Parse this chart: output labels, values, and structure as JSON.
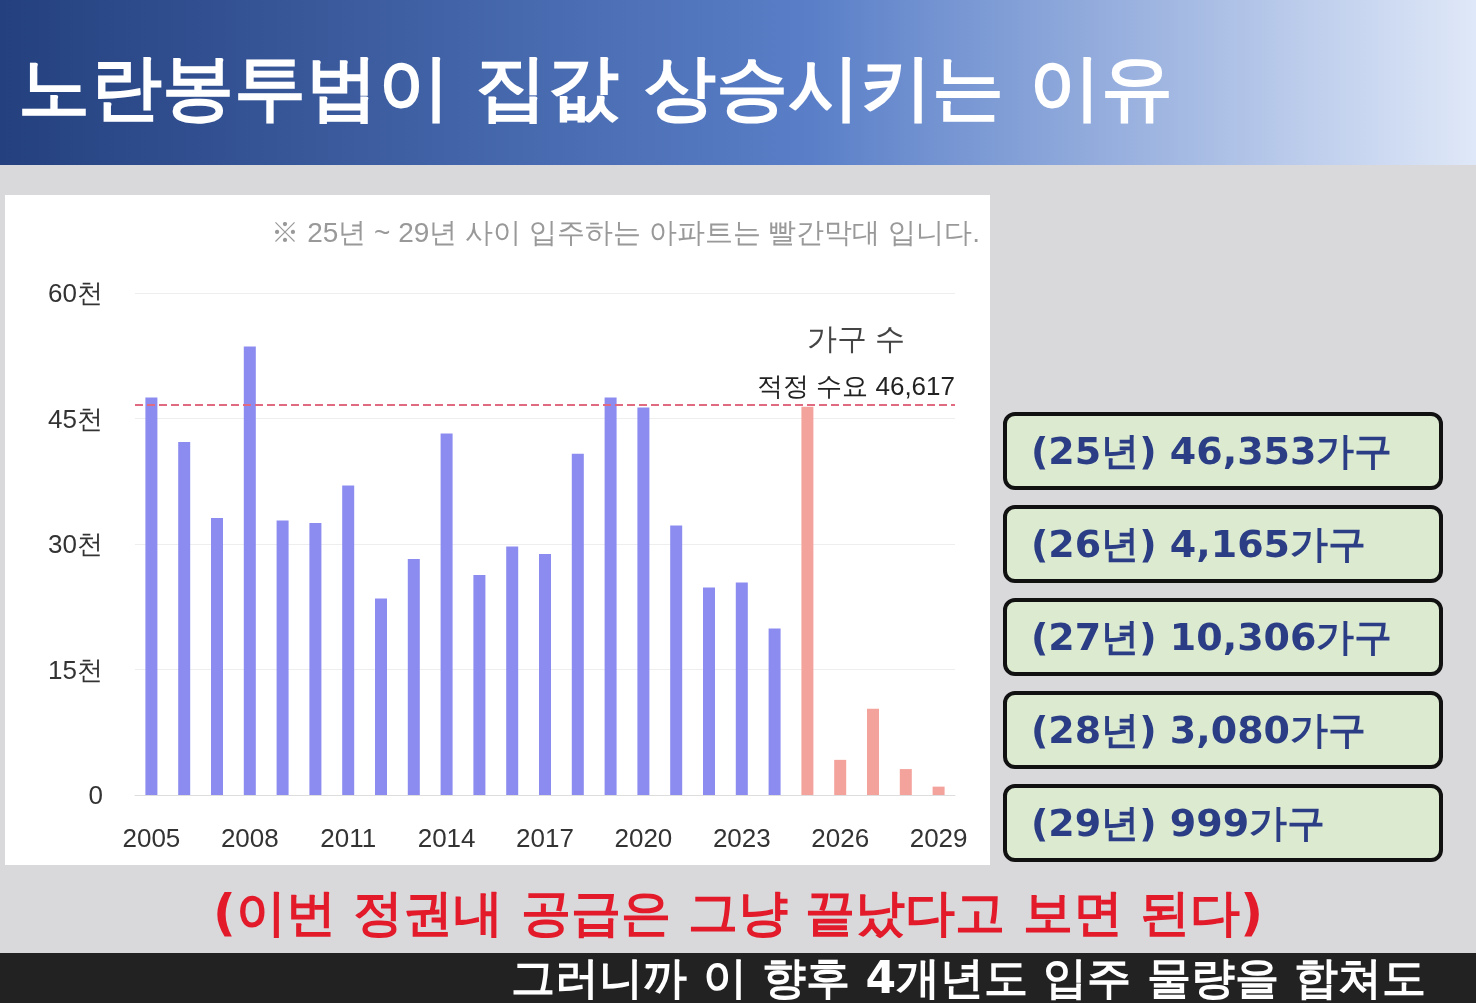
{
  "chart_data": {
    "type": "bar",
    "title": "노란봉투법이 집값 상승시키는 이유",
    "subtitle": "※ 25년 ~ 29년 사이 입주하는 아파트는 빨간막대 입니다.",
    "ylabel": "가구 수",
    "categories": [
      "2005",
      null,
      null,
      "2008",
      null,
      null,
      "2011",
      null,
      null,
      "2014",
      null,
      null,
      "2017",
      null,
      null,
      "2020",
      null,
      null,
      "2023",
      null,
      null,
      "2026",
      null,
      null,
      "2029"
    ],
    "values": [
      47.5,
      42.2,
      33.1,
      53.6,
      32.8,
      32.5,
      37.0,
      23.5,
      28.2,
      43.2,
      26.3,
      29.7,
      28.8,
      40.8,
      47.5,
      46.3,
      32.2,
      24.8,
      25.4,
      19.9,
      46.4,
      4.2,
      10.3,
      3.1,
      1.0
    ],
    "colors": [
      "#8b8bf0",
      "#8b8bf0",
      "#8b8bf0",
      "#8b8bf0",
      "#8b8bf0",
      "#8b8bf0",
      "#8b8bf0",
      "#8b8bf0",
      "#8b8bf0",
      "#8b8bf0",
      "#8b8bf0",
      "#8b8bf0",
      "#8b8bf0",
      "#8b8bf0",
      "#8b8bf0",
      "#8b8bf0",
      "#8b8bf0",
      "#8b8bf0",
      "#8b8bf0",
      "#8b8bf0",
      "#f4a39c",
      "#f4a39c",
      "#f4a39c",
      "#f4a39c",
      "#f4a39c"
    ],
    "ylim": [
      0,
      60
    ],
    "yticks": [
      0,
      {
        "value": 15,
        "label": "15천"
      },
      {
        "value": 30,
        "label": "30천"
      },
      {
        "value": 45,
        "label": "45천"
      },
      {
        "value": 60,
        "label": "60천"
      }
    ],
    "grid": "y",
    "ref_lines": [
      {
        "axis": "y",
        "value": 46.617,
        "label": "적정 수요 46,617",
        "color": "#e06a80",
        "line_style": "dashed"
      }
    ],
    "annotations": [
      "(25년) 46,353가구",
      "(26년) 4,165가구",
      "(27년) 10,306가구",
      "(28년) 3,080가구",
      "(29년) 999가구",
      "(이번 정권내 공급은 그냥 끝났다고 보면 된다)",
      "그러니까 이 향후 4개년도 입주 물량을 합쳐도"
    ]
  }
}
